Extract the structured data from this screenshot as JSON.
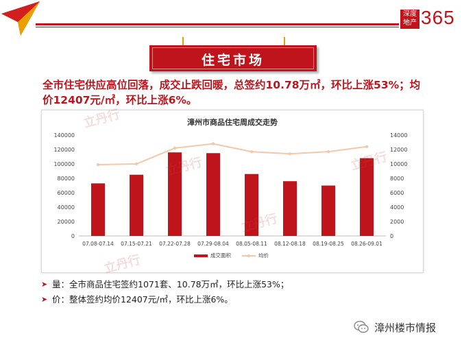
{
  "brand": {
    "box_text": "深度地产",
    "number": "365"
  },
  "section": {
    "title": "住宅市场"
  },
  "headline": "全市住宅供应高位回落，成交止跌回暖，总签约10.78万㎡，环比上涨53%；均价12407元/㎡，环比上涨6%。",
  "chart_data": {
    "type": "bar",
    "title": "漳州市商品住宅周成交走势",
    "categories": [
      "07.08-07.14",
      "07.15-07.21",
      "07.22-07.28",
      "07.29-08.04",
      "08.05-08.11",
      "08.12-08.18",
      "08.19-08.25",
      "08.26-09.01"
    ],
    "series": [
      {
        "name": "成交面积",
        "type": "bar",
        "axis": "left",
        "color": "#c0141c",
        "values": [
          73000,
          85000,
          116000,
          115000,
          86000,
          76000,
          70000,
          108000
        ]
      },
      {
        "name": "均价",
        "type": "line",
        "axis": "right",
        "color": "#f4c7a7",
        "values": [
          9900,
          10000,
          12200,
          12800,
          11700,
          11400,
          11700,
          12400
        ]
      }
    ],
    "y_left": {
      "min": 0,
      "max": 140000,
      "ticks": [
        0,
        20000,
        40000,
        60000,
        80000,
        100000,
        120000,
        140000
      ]
    },
    "y_right": {
      "min": 0,
      "max": 14000,
      "ticks": [
        0,
        2000,
        4000,
        6000,
        8000,
        10000,
        12000,
        14000
      ]
    },
    "legend_position": "bottom"
  },
  "watermark": {
    "text": "立丹行",
    "sub": "LI DAN HANG"
  },
  "bullets": [
    "量：全市商品住宅签约1071套、10.78万㎡，环比上涨53%；",
    "价：整体签约均价12407元/㎡，环比上涨6%。"
  ],
  "footer": {
    "account": "漳州楼市情报"
  }
}
